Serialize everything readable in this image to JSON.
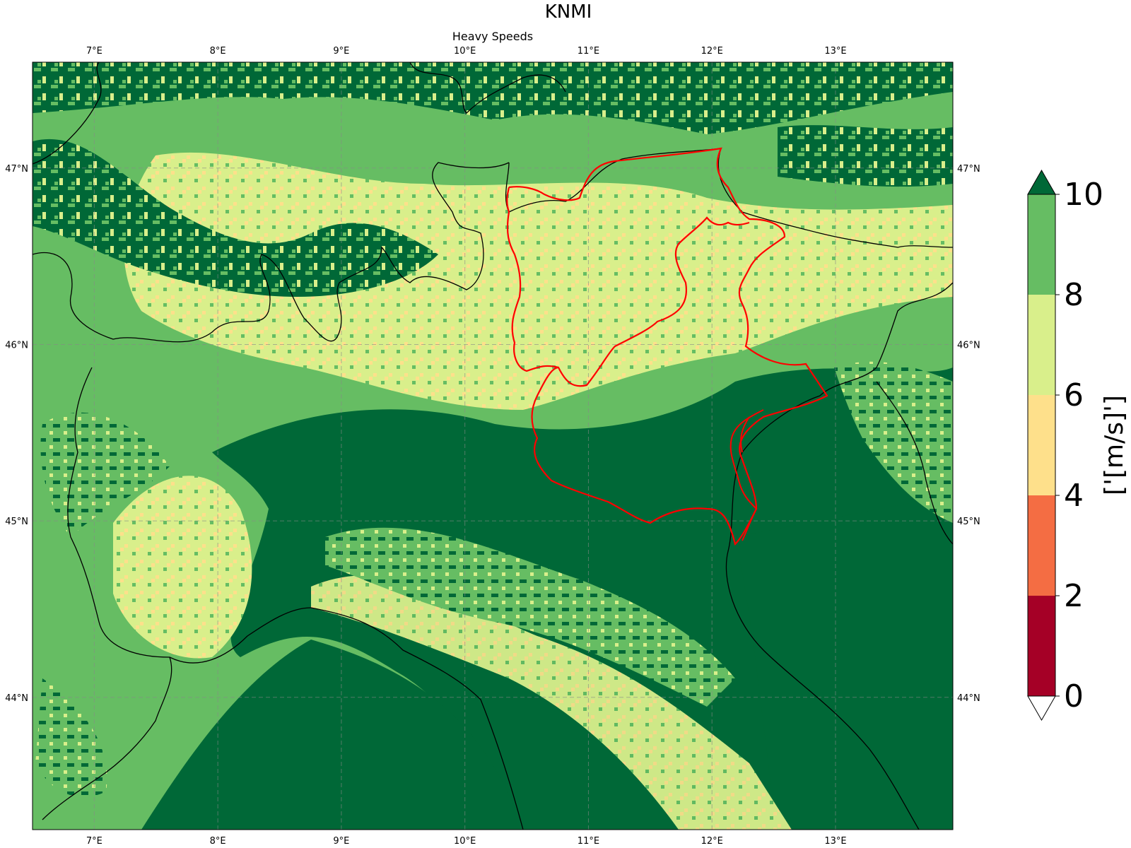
{
  "title": "KNMI",
  "subtitle": "Heavy Speeds",
  "map": {
    "lon_range": [
      6.5,
      13.95
    ],
    "lat_range": [
      43.25,
      47.6
    ],
    "lon_ticks": [
      {
        "value": 7,
        "label": "7°E"
      },
      {
        "value": 8,
        "label": "8°E"
      },
      {
        "value": 9,
        "label": "9°E"
      },
      {
        "value": 10,
        "label": "10°E"
      },
      {
        "value": 11,
        "label": "11°E"
      },
      {
        "value": 12,
        "label": "12°E"
      },
      {
        "value": 13,
        "label": "13°E"
      }
    ],
    "lat_ticks": [
      {
        "value": 44,
        "label": "44°N"
      },
      {
        "value": 45,
        "label": "45°N"
      },
      {
        "value": 46,
        "label": "46°N"
      },
      {
        "value": 47,
        "label": "47°N"
      }
    ],
    "gridlines": true,
    "highlight_color": "#ff0000",
    "border_color": "#000000"
  },
  "colorbar": {
    "label": "['[m/s]']",
    "ticks": [
      "0",
      "2",
      "4",
      "6",
      "8",
      "10"
    ],
    "bins": [
      {
        "range": [
          0,
          2
        ],
        "color": "#a50026"
      },
      {
        "range": [
          2,
          4
        ],
        "color": "#f46d43"
      },
      {
        "range": [
          4,
          6
        ],
        "color": "#fee08b"
      },
      {
        "range": [
          6,
          8
        ],
        "color": "#d9ef8b"
      },
      {
        "range": [
          8,
          10
        ],
        "color": "#66bd63"
      }
    ],
    "over_color": "#006837",
    "under_color": "#ffffff",
    "extend": "both"
  }
}
